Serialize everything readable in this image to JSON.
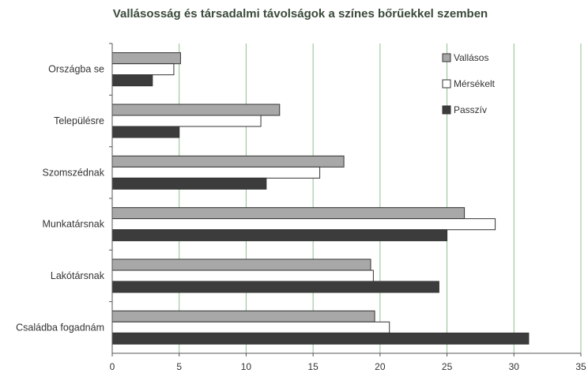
{
  "chart_data": {
    "type": "bar",
    "orientation": "horizontal",
    "title": "Vallásosság és társadalmi távolságok a színes bőrűekkel szemben",
    "xlabel": "",
    "ylabel": "",
    "xlim": [
      0,
      35
    ],
    "xticks": [
      0,
      5,
      10,
      15,
      20,
      25,
      30,
      35
    ],
    "grid": "vertical",
    "legend_position": "top-right",
    "categories": [
      "Országba se",
      "Településre",
      "Szomszédnak",
      "Munkatársnak",
      "Lakótársnak",
      "Családba fogadnám"
    ],
    "series": [
      {
        "name": "Vallásos",
        "color": "#a8a8a8",
        "values": [
          5.1,
          12.5,
          17.3,
          26.3,
          19.3,
          19.6
        ]
      },
      {
        "name": "Mérsékelt",
        "color": "#ffffff",
        "values": [
          4.6,
          11.1,
          15.5,
          28.6,
          19.5,
          20.7
        ]
      },
      {
        "name": "Passzív",
        "color": "#3c3c3c",
        "values": [
          3.0,
          5.0,
          11.5,
          25.0,
          24.4,
          31.1
        ]
      }
    ]
  },
  "colors": {
    "grid": "#8fbf8f",
    "axis": "#555555",
    "bar_outline": "#333333"
  }
}
